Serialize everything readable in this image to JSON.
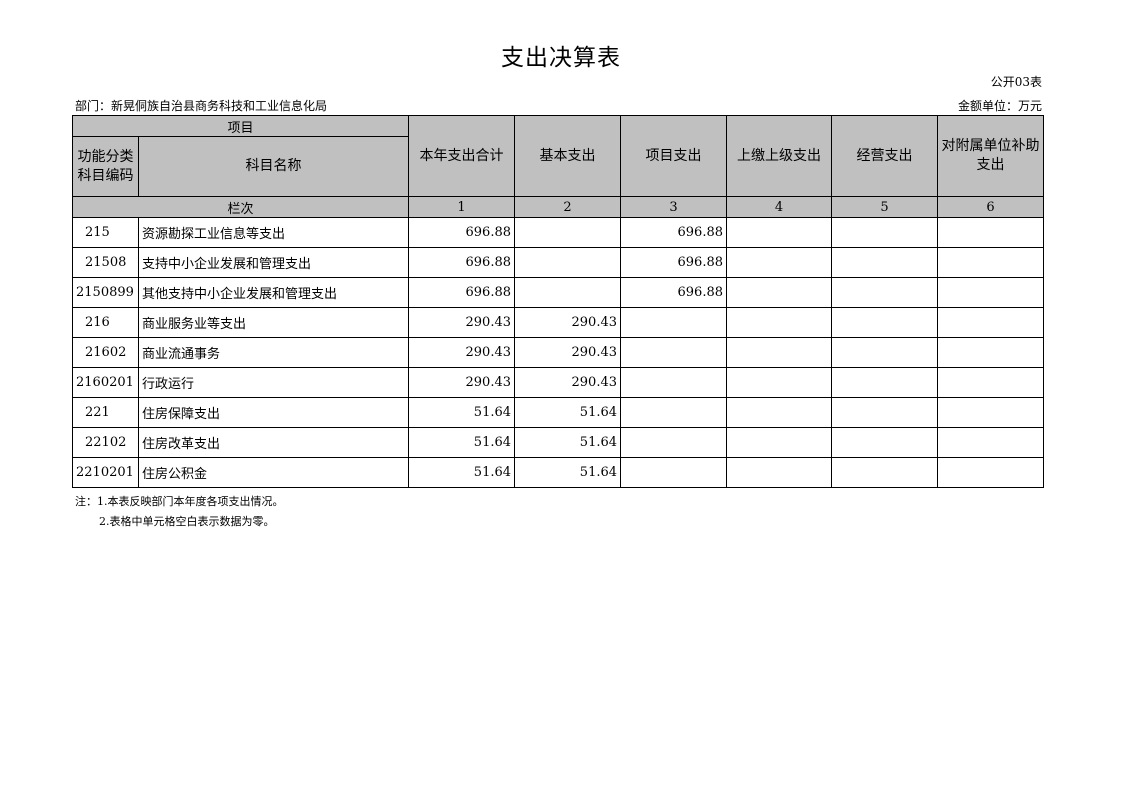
{
  "title": "支出决算表",
  "form_no": "公开03表",
  "department": "部门：新晃侗族自治县商务科技和工业信息化局",
  "unit": "金额单位：万元",
  "headers": {
    "item": "项目",
    "code": "功能分类科目编码",
    "name": "科目名称",
    "total": "本年支出合计",
    "basic": "基本支出",
    "project": "项目支出",
    "upper": "上缴上级支出",
    "business": "经营支出",
    "subsidy": "对附属单位补助支出",
    "row_index": "栏次",
    "col_nums": [
      "1",
      "2",
      "3",
      "4",
      "5",
      "6"
    ]
  },
  "rows": [
    {
      "code": "215",
      "name": "资源勘探工业信息等支出",
      "total": "696.88",
      "basic": "",
      "project": "696.88",
      "upper": "",
      "business": "",
      "subsidy": ""
    },
    {
      "code": "21508",
      "name": "支持中小企业发展和管理支出",
      "total": "696.88",
      "basic": "",
      "project": "696.88",
      "upper": "",
      "business": "",
      "subsidy": ""
    },
    {
      "code": "2150899",
      "name": "其他支持中小企业发展和管理支出",
      "total": "696.88",
      "basic": "",
      "project": "696.88",
      "upper": "",
      "business": "",
      "subsidy": ""
    },
    {
      "code": "216",
      "name": "商业服务业等支出",
      "total": "290.43",
      "basic": "290.43",
      "project": "",
      "upper": "",
      "business": "",
      "subsidy": ""
    },
    {
      "code": "21602",
      "name": "商业流通事务",
      "total": "290.43",
      "basic": "290.43",
      "project": "",
      "upper": "",
      "business": "",
      "subsidy": ""
    },
    {
      "code": "2160201",
      "name": "行政运行",
      "total": "290.43",
      "basic": "290.43",
      "project": "",
      "upper": "",
      "business": "",
      "subsidy": ""
    },
    {
      "code": "221",
      "name": "住房保障支出",
      "total": "51.64",
      "basic": "51.64",
      "project": "",
      "upper": "",
      "business": "",
      "subsidy": ""
    },
    {
      "code": "22102",
      "name": "住房改革支出",
      "total": "51.64",
      "basic": "51.64",
      "project": "",
      "upper": "",
      "business": "",
      "subsidy": ""
    },
    {
      "code": "2210201",
      "name": "住房公积金",
      "total": "51.64",
      "basic": "51.64",
      "project": "",
      "upper": "",
      "business": "",
      "subsidy": ""
    }
  ],
  "notes": [
    "注：1.本表反映部门本年度各项支出情况。",
    "2.表格中单元格空白表示数据为零。"
  ]
}
